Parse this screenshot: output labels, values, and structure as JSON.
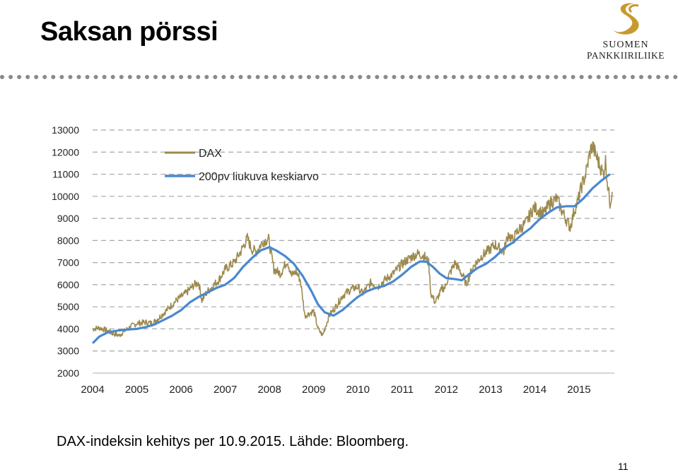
{
  "slide": {
    "title": "Saksan pörssi",
    "caption": "DAX-indeksin kehitys per 10.9.2015. Lähde: Bloomberg.",
    "page_number": "11"
  },
  "logo": {
    "icon": "s-swoosh-logo-icon",
    "line1": "SUOMEN",
    "line2": "PANKKIIRILIIKE",
    "color": "#c79a2e"
  },
  "chart_data": {
    "type": "line",
    "title": "",
    "xlabel": "",
    "ylabel": "",
    "ylim": [
      2000,
      13000
    ],
    "xlim": [
      2004,
      2015.8
    ],
    "yticks": [
      "2000",
      "3000",
      "4000",
      "5000",
      "6000",
      "7000",
      "8000",
      "9000",
      "10000",
      "11000",
      "12000",
      "13000"
    ],
    "xticks": [
      "2004",
      "2005",
      "2006",
      "2007",
      "2008",
      "2009",
      "2010",
      "2011",
      "2012",
      "2013",
      "2014",
      "2015"
    ],
    "grid": "horizontal-dashed",
    "legend_placement": "top-left",
    "series": [
      {
        "name": "DAX",
        "color": "#9c8a4d",
        "points": [
          [
            2004.0,
            4000
          ],
          [
            2004.15,
            4050
          ],
          [
            2004.3,
            3950
          ],
          [
            2004.45,
            3800
          ],
          [
            2004.6,
            3700
          ],
          [
            2004.75,
            3950
          ],
          [
            2004.9,
            4150
          ],
          [
            2005.0,
            4250
          ],
          [
            2005.2,
            4300
          ],
          [
            2005.35,
            4250
          ],
          [
            2005.5,
            4500
          ],
          [
            2005.7,
            4900
          ],
          [
            2005.9,
            5300
          ],
          [
            2006.1,
            5600
          ],
          [
            2006.3,
            6000
          ],
          [
            2006.4,
            6100
          ],
          [
            2006.47,
            5300
          ],
          [
            2006.6,
            5700
          ],
          [
            2006.85,
            6200
          ],
          [
            2007.0,
            6700
          ],
          [
            2007.2,
            7000
          ],
          [
            2007.35,
            7500
          ],
          [
            2007.5,
            8100
          ],
          [
            2007.6,
            7600
          ],
          [
            2007.7,
            7500
          ],
          [
            2007.85,
            7950
          ],
          [
            2007.98,
            8050
          ],
          [
            2008.1,
            6700
          ],
          [
            2008.25,
            6500
          ],
          [
            2008.4,
            7100
          ],
          [
            2008.5,
            6400
          ],
          [
            2008.6,
            6600
          ],
          [
            2008.7,
            6200
          ],
          [
            2008.8,
            4600
          ],
          [
            2008.9,
            4700
          ],
          [
            2009.0,
            4800
          ],
          [
            2009.1,
            4000
          ],
          [
            2009.2,
            3700
          ],
          [
            2009.35,
            4600
          ],
          [
            2009.5,
            5000
          ],
          [
            2009.65,
            5500
          ],
          [
            2009.85,
            5800
          ],
          [
            2010.0,
            5900
          ],
          [
            2010.1,
            5600
          ],
          [
            2010.3,
            6100
          ],
          [
            2010.45,
            5900
          ],
          [
            2010.6,
            6200
          ],
          [
            2010.8,
            6500
          ],
          [
            2010.98,
            6900
          ],
          [
            2011.1,
            7100
          ],
          [
            2011.25,
            7300
          ],
          [
            2011.35,
            7400
          ],
          [
            2011.5,
            7300
          ],
          [
            2011.6,
            7000
          ],
          [
            2011.65,
            5600
          ],
          [
            2011.75,
            5200
          ],
          [
            2011.9,
            5800
          ],
          [
            2011.98,
            5900
          ],
          [
            2012.05,
            6400
          ],
          [
            2012.2,
            7000
          ],
          [
            2012.4,
            6300
          ],
          [
            2012.45,
            6000
          ],
          [
            2012.6,
            6800
          ],
          [
            2012.8,
            7300
          ],
          [
            2012.98,
            7600
          ],
          [
            2013.1,
            7800
          ],
          [
            2013.3,
            7500
          ],
          [
            2013.4,
            8300
          ],
          [
            2013.5,
            8000
          ],
          [
            2013.6,
            8400
          ],
          [
            2013.8,
            8800
          ],
          [
            2013.98,
            9500
          ],
          [
            2014.05,
            9400
          ],
          [
            2014.2,
            9200
          ],
          [
            2014.35,
            9700
          ],
          [
            2014.5,
            9900
          ],
          [
            2014.6,
            9400
          ],
          [
            2014.8,
            8600
          ],
          [
            2014.9,
            9400
          ],
          [
            2014.98,
            9800
          ],
          [
            2015.05,
            10400
          ],
          [
            2015.15,
            11000
          ],
          [
            2015.25,
            12000
          ],
          [
            2015.3,
            12300
          ],
          [
            2015.45,
            11500
          ],
          [
            2015.55,
            11000
          ],
          [
            2015.6,
            11600
          ],
          [
            2015.65,
            10500
          ],
          [
            2015.7,
            9700
          ],
          [
            2015.75,
            10200
          ]
        ]
      },
      {
        "name": "200pv liukuva keskiarvo",
        "color": "#4a88cf",
        "points": [
          [
            2004.0,
            3350
          ],
          [
            2004.15,
            3650
          ],
          [
            2004.35,
            3850
          ],
          [
            2004.6,
            3930
          ],
          [
            2004.85,
            3980
          ],
          [
            2005.0,
            4000
          ],
          [
            2005.2,
            4080
          ],
          [
            2005.4,
            4200
          ],
          [
            2005.6,
            4400
          ],
          [
            2005.8,
            4600
          ],
          [
            2006.0,
            4850
          ],
          [
            2006.2,
            5200
          ],
          [
            2006.4,
            5450
          ],
          [
            2006.6,
            5650
          ],
          [
            2006.8,
            5850
          ],
          [
            2007.0,
            6000
          ],
          [
            2007.2,
            6300
          ],
          [
            2007.4,
            6800
          ],
          [
            2007.6,
            7200
          ],
          [
            2007.8,
            7550
          ],
          [
            2008.0,
            7700
          ],
          [
            2008.15,
            7550
          ],
          [
            2008.35,
            7300
          ],
          [
            2008.55,
            6950
          ],
          [
            2008.75,
            6400
          ],
          [
            2008.95,
            5700
          ],
          [
            2009.1,
            5100
          ],
          [
            2009.25,
            4750
          ],
          [
            2009.45,
            4600
          ],
          [
            2009.65,
            4850
          ],
          [
            2009.85,
            5200
          ],
          [
            2010.0,
            5450
          ],
          [
            2010.2,
            5700
          ],
          [
            2010.4,
            5850
          ],
          [
            2010.6,
            5950
          ],
          [
            2010.8,
            6150
          ],
          [
            2011.0,
            6450
          ],
          [
            2011.2,
            6800
          ],
          [
            2011.4,
            7050
          ],
          [
            2011.55,
            7050
          ],
          [
            2011.7,
            6800
          ],
          [
            2011.85,
            6500
          ],
          [
            2012.0,
            6300
          ],
          [
            2012.2,
            6250
          ],
          [
            2012.35,
            6200
          ],
          [
            2012.5,
            6450
          ],
          [
            2012.7,
            6750
          ],
          [
            2012.9,
            6950
          ],
          [
            2013.1,
            7250
          ],
          [
            2013.3,
            7650
          ],
          [
            2013.5,
            7900
          ],
          [
            2013.7,
            8250
          ],
          [
            2013.9,
            8550
          ],
          [
            2014.1,
            8950
          ],
          [
            2014.3,
            9250
          ],
          [
            2014.5,
            9500
          ],
          [
            2014.7,
            9550
          ],
          [
            2014.9,
            9550
          ],
          [
            2015.1,
            9900
          ],
          [
            2015.3,
            10350
          ],
          [
            2015.5,
            10700
          ],
          [
            2015.7,
            11000
          ]
        ]
      }
    ]
  }
}
